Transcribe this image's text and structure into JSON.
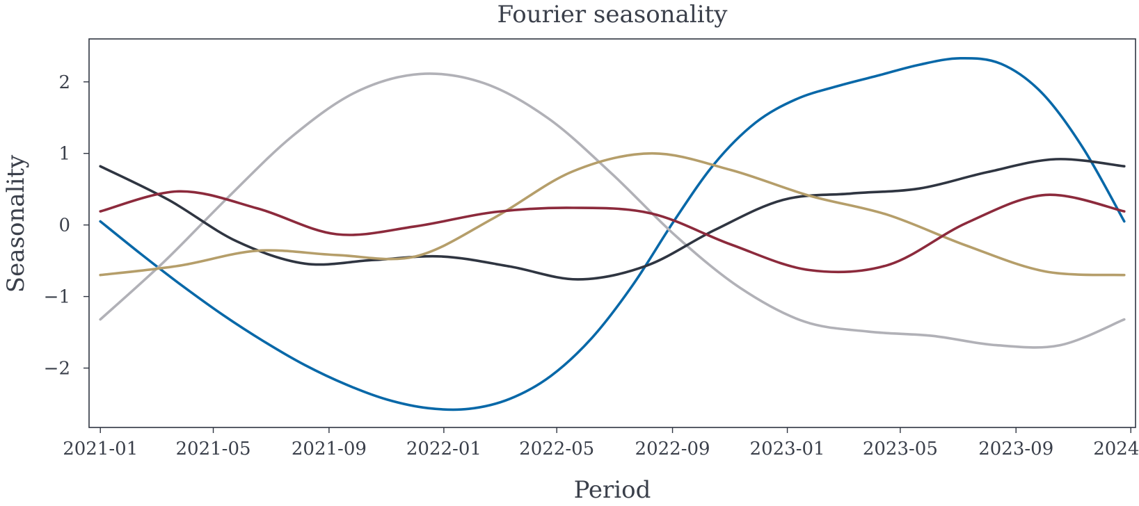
{
  "chart_data": {
    "type": "line",
    "title": "Fourier seasonality",
    "xlabel": "Period",
    "ylabel": "Seasonality",
    "x_start": "2021-01-01",
    "x_end": "2023-12-25",
    "x_step_days": 7,
    "xlim": [
      "2020-12-20",
      "2024-01-06"
    ],
    "ylim": [
      -2.83,
      2.6
    ],
    "x_ticks": [
      {
        "date": "2021-01-01",
        "label": "2021-01"
      },
      {
        "date": "2021-05-01",
        "label": "2021-05"
      },
      {
        "date": "2021-09-01",
        "label": "2021-09"
      },
      {
        "date": "2022-01-01",
        "label": "2022-01"
      },
      {
        "date": "2022-05-01",
        "label": "2022-05"
      },
      {
        "date": "2022-09-01",
        "label": "2022-09"
      },
      {
        "date": "2023-01-01",
        "label": "2023-01"
      },
      {
        "date": "2023-05-01",
        "label": "2023-05"
      },
      {
        "date": "2023-09-01",
        "label": "2023-09"
      },
      {
        "date": "2024-01-01",
        "label": "2024-01"
      }
    ],
    "y_ticks": [
      {
        "value": 2,
        "label": "2"
      },
      {
        "value": 1,
        "label": "1"
      },
      {
        "value": 0,
        "label": "0"
      },
      {
        "value": -1,
        "label": "−1"
      },
      {
        "value": -2,
        "label": "−2"
      }
    ],
    "grid": false,
    "legend": "none",
    "series": [
      {
        "color": "#0868a8",
        "values": [
          0.05,
          -0.41,
          -0.85,
          -1.26,
          -1.63,
          -1.96,
          -2.23,
          -2.44,
          -2.56,
          -2.57,
          -2.43,
          -2.11,
          -1.58,
          -0.84,
          0.05,
          0.86,
          1.43,
          1.76,
          1.94,
          2.09,
          2.24,
          2.33,
          2.25,
          1.84,
          1.07,
          0.05
        ]
      },
      {
        "color": "#b1b1b7",
        "values": [
          -1.32,
          -0.51,
          0.39,
          1.24,
          1.86,
          2.11,
          1.98,
          1.49,
          0.71,
          -0.16,
          -0.88,
          -1.35,
          -1.49,
          -1.55,
          -1.68,
          -1.68,
          -1.32
        ]
      },
      {
        "color": "#2f3541",
        "values": [
          0.82,
          0.35,
          -0.23,
          -0.54,
          -0.49,
          -0.44,
          -0.58,
          -0.76,
          -0.57,
          -0.07,
          0.35,
          0.44,
          0.51,
          0.74,
          0.92,
          0.82
        ]
      },
      {
        "color": "#b59e6a",
        "values": [
          -0.7,
          -0.57,
          -0.36,
          -0.42,
          -0.44,
          0.1,
          0.75,
          1.0,
          0.77,
          0.41,
          0.14,
          -0.29,
          -0.65,
          -0.7
        ]
      },
      {
        "color": "#8c2a3c",
        "values": [
          0.19,
          0.47,
          0.23,
          -0.13,
          -0.02,
          0.18,
          0.24,
          0.16,
          -0.27,
          -0.63,
          -0.56,
          0.03,
          0.42,
          0.19
        ]
      }
    ]
  }
}
